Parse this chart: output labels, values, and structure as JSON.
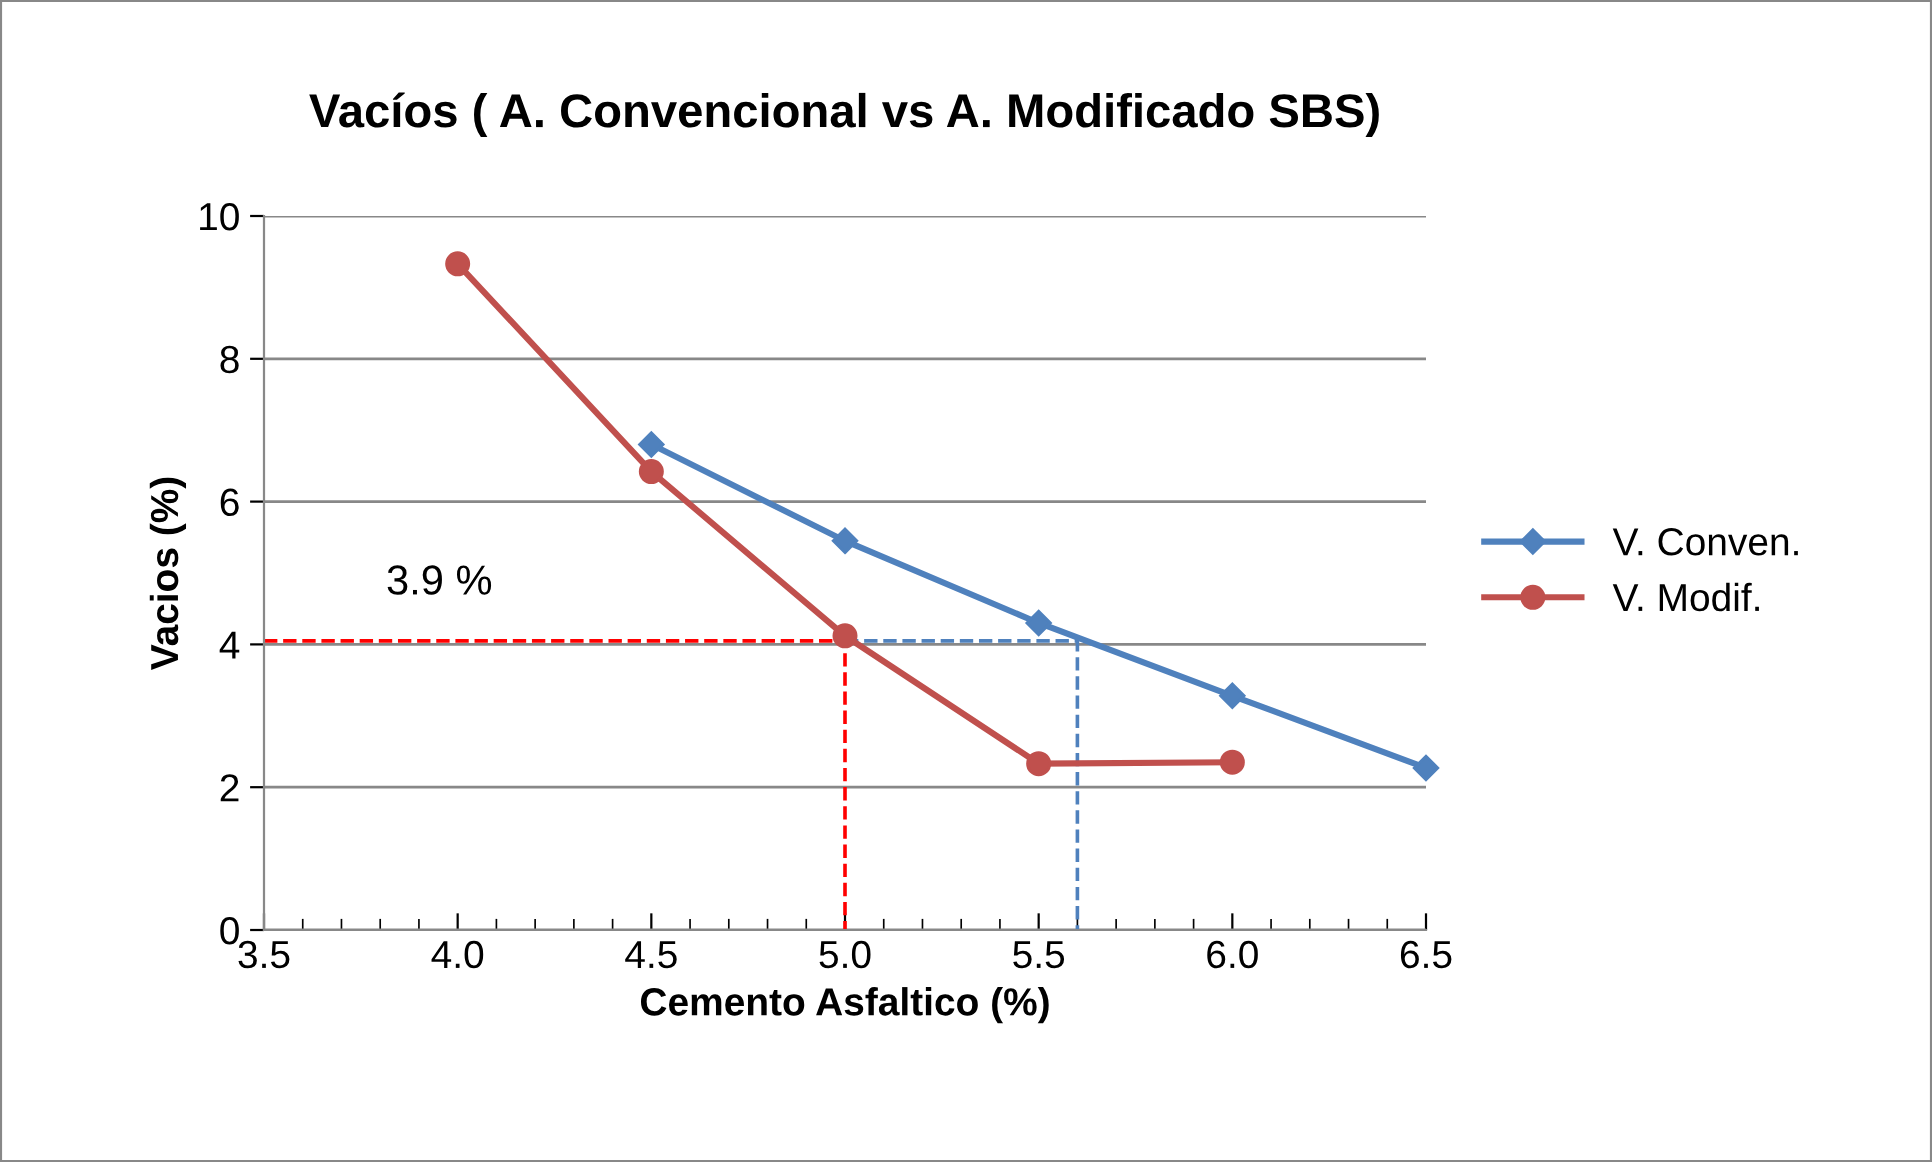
{
  "chart_data": {
    "type": "line",
    "title": "Vacíos ( A. Convencional vs A. Modificado SBS)",
    "xlabel": "Cemento Asfaltico (%)",
    "ylabel": "Vacios (%)",
    "x": [
      4.5,
      5.0,
      5.5,
      6.0,
      6.5
    ],
    "series": [
      {
        "name": "V. Conven.",
        "color": "#4f81bd",
        "marker": "diamond",
        "values": [
          6.8,
          5.45,
          4.3,
          3.28,
          2.27
        ]
      },
      {
        "name": "V. Modif.",
        "color": "#c0504d",
        "marker": "circle",
        "x": [
          4.0,
          4.5,
          5.0,
          5.5,
          6.0
        ],
        "values": [
          9.33,
          6.42,
          4.12,
          2.33,
          2.35
        ]
      },
      {
        "color": "#ff0000",
        "line_style": "dashed",
        "marker": "none",
        "x": [
          3.5,
          5.0,
          5.0
        ],
        "values": [
          4.05,
          4.05,
          0
        ]
      },
      {
        "color": "#4f81bd",
        "line_style": "dashed",
        "marker": "none",
        "x": [
          5.0,
          5.6,
          5.6
        ],
        "values": [
          4.05,
          4.05,
          0
        ]
      }
    ],
    "annotations": [
      "3.9 %"
    ],
    "xlim": [
      3.5,
      6.5
    ],
    "xticks": [
      {
        "value": 3.5,
        "label": "3.5"
      },
      {
        "value": 4.0,
        "label": "4.0"
      },
      {
        "value": 4.5,
        "label": "4.5"
      },
      {
        "value": 5.0,
        "label": "5.0"
      },
      {
        "value": 5.5,
        "label": "5.5"
      },
      {
        "value": 6.0,
        "label": "6.0"
      },
      {
        "value": 6.5,
        "label": "6.5"
      }
    ],
    "ylim": [
      0,
      10
    ],
    "yticks": [
      0,
      2,
      4,
      6,
      8,
      10
    ],
    "grid": "y",
    "legend": "right"
  }
}
